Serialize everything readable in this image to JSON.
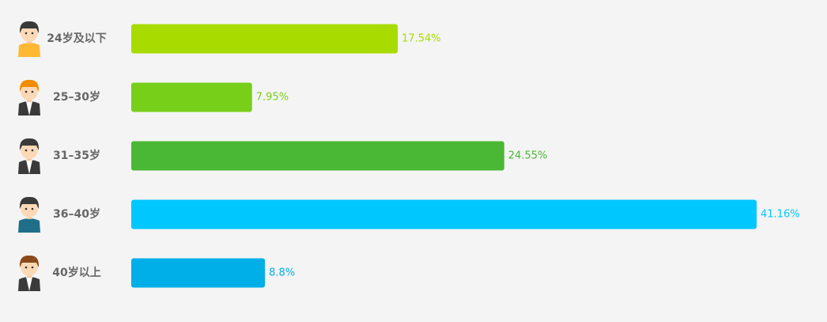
{
  "chart_data": {
    "type": "bar",
    "categories": [
      "24岁及以下",
      "25–30岁",
      "31–35岁",
      "36–40岁",
      "40岁以上"
    ],
    "values": [
      17.54,
      7.95,
      24.55,
      41.16,
      8.8
    ],
    "value_labels": [
      "17.54%",
      "7.95%",
      "24.55%",
      "41.16%",
      "8.8%"
    ],
    "colors": [
      "#a8dc00",
      "#78cf1a",
      "#4ab834",
      "#00c8ff",
      "#00aee8"
    ]
  }
}
